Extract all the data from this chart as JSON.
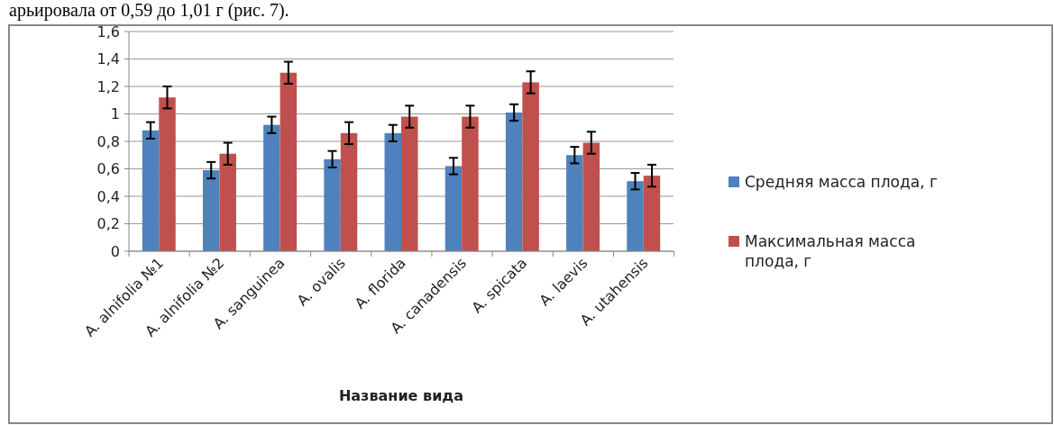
{
  "chart_data": {
    "type": "bar",
    "xlabel": "Название вида",
    "annotations": [
      "арьировала от 0,59 до 1,01 г (рис. 7)."
    ],
    "categories": [
      "A. alnifolia №1",
      "A. alnifolia №2",
      "A. sanguinea",
      "A. ovalis",
      "A. florida",
      "A. canadensis",
      "A. spicata",
      "A. laevis",
      "A. utahensis"
    ],
    "series": [
      {
        "name": "Средняя масса плода, г",
        "color": "#4f81bd",
        "values": [
          0.88,
          0.59,
          0.92,
          0.67,
          0.86,
          0.62,
          1.01,
          0.7,
          0.51
        ],
        "errors": [
          0.06,
          0.06,
          0.06,
          0.06,
          0.06,
          0.06,
          0.06,
          0.06,
          0.06
        ]
      },
      {
        "name": "Максимальная масса плода, г",
        "color": "#c0504d",
        "values": [
          1.12,
          0.71,
          1.3,
          0.86,
          0.98,
          0.98,
          1.23,
          0.79,
          0.55
        ],
        "errors": [
          0.08,
          0.08,
          0.08,
          0.08,
          0.08,
          0.08,
          0.08,
          0.08,
          0.08
        ]
      }
    ],
    "ylim": [
      0,
      1.6
    ],
    "yticks": [
      {
        "value": 0,
        "label": "0"
      },
      {
        "value": 0.2,
        "label": "0,2"
      },
      {
        "value": 0.4,
        "label": "0,4"
      },
      {
        "value": 0.6,
        "label": "0,6"
      },
      {
        "value": 0.8,
        "label": "0,8"
      },
      {
        "value": 1,
        "label": "1"
      },
      {
        "value": 1.2,
        "label": "1,2"
      },
      {
        "value": 1.4,
        "label": "1,4"
      },
      {
        "value": 1.6,
        "label": "1,6"
      }
    ],
    "grid": "y",
    "legend": "right"
  }
}
